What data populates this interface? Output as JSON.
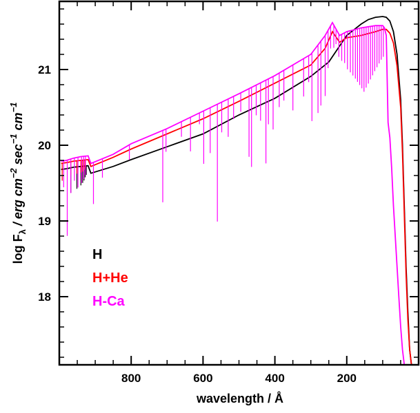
{
  "chart_data": {
    "type": "line",
    "xlabel": "wavelength / Å",
    "ylabel_parts": [
      "log F",
      "λ",
      " / erg cm",
      "−2",
      " sec",
      "−1",
      " cm",
      "−1"
    ],
    "xlim": [
      1000,
      0
    ],
    "ylim": [
      17.1,
      21.9
    ],
    "x_ticks": [
      800,
      600,
      400,
      200
    ],
    "y_ticks": [
      18,
      19,
      20,
      21
    ],
    "x_tick_labels": [
      "800",
      "600",
      "400",
      "200"
    ],
    "y_tick_labels": [
      "18",
      "19",
      "20",
      "21"
    ],
    "grid": false,
    "legend_position": "lower-left",
    "series": [
      {
        "name": "H",
        "color": "#000000",
        "x": [
          995,
          980,
          960,
          940,
          920,
          912,
          850,
          800,
          700,
          600,
          500,
          400,
          300,
          250,
          200,
          160,
          140,
          120,
          100,
          90,
          80,
          70,
          60,
          50,
          45,
          40,
          35,
          30,
          25,
          20
        ],
        "y": [
          19.68,
          19.69,
          19.71,
          19.72,
          19.73,
          19.63,
          19.72,
          19.81,
          19.98,
          20.15,
          20.4,
          20.62,
          20.91,
          21.1,
          21.45,
          21.6,
          21.66,
          21.69,
          21.7,
          21.69,
          21.64,
          21.5,
          21.2,
          20.6,
          20.0,
          19.2,
          18.4,
          17.8,
          17.3,
          17.1
        ],
        "absorption_lines": [
          {
            "x": 968,
            "depth": 0.33
          },
          {
            "x": 951,
            "depth": 0.29
          },
          {
            "x": 940,
            "depth": 0.25
          },
          {
            "x": 935,
            "depth": 0.22
          },
          {
            "x": 931,
            "depth": 0.19
          },
          {
            "x": 928,
            "depth": 0.15
          },
          {
            "x": 925,
            "depth": 0.12
          }
        ]
      },
      {
        "name": "H+He",
        "color": "#ff0000",
        "x": [
          995,
          980,
          960,
          940,
          920,
          912,
          850,
          800,
          700,
          600,
          500,
          400,
          300,
          260,
          240,
          220,
          200,
          160,
          120,
          100,
          90,
          80,
          70,
          60,
          50,
          45,
          40,
          35,
          30,
          25,
          20
        ],
        "y": [
          19.76,
          19.77,
          19.79,
          19.8,
          19.81,
          19.72,
          19.84,
          19.95,
          20.15,
          20.35,
          20.58,
          20.82,
          21.06,
          21.28,
          21.5,
          21.36,
          21.42,
          21.45,
          21.5,
          21.53,
          21.53,
          21.48,
          21.35,
          21.05,
          20.5,
          19.9,
          19.1,
          18.3,
          17.7,
          17.3,
          17.1
        ],
        "absorption_lines": [
          {
            "x": 992,
            "depth": 0.23
          },
          {
            "x": 968,
            "depth": 0.18
          },
          {
            "x": 951,
            "depth": 0.17
          },
          {
            "x": 940,
            "depth": 0.16
          },
          {
            "x": 935,
            "depth": 0.15
          },
          {
            "x": 931,
            "depth": 0.13
          },
          {
            "x": 928,
            "depth": 0.11
          }
        ]
      },
      {
        "name": "H-Ca",
        "color": "#ff00ff",
        "x": [
          995,
          980,
          960,
          940,
          920,
          912,
          850,
          800,
          700,
          600,
          500,
          400,
          300,
          260,
          240,
          220,
          200,
          160,
          120,
          100,
          95,
          90,
          85,
          80,
          75,
          70,
          65,
          60,
          55,
          50,
          45,
          40,
          35
        ],
        "y": [
          19.79,
          19.8,
          19.83,
          19.85,
          19.86,
          19.76,
          19.88,
          20.02,
          20.22,
          20.45,
          20.68,
          20.92,
          21.2,
          21.45,
          21.62,
          21.45,
          21.5,
          21.55,
          21.58,
          21.58,
          21.55,
          21.45,
          20.3,
          20.1,
          19.7,
          19.2,
          18.8,
          18.4,
          18.0,
          17.6,
          17.3,
          17.1,
          17.0
        ],
        "absorption_lines": [
          {
            "x": 988,
            "depth": 0.35
          },
          {
            "x": 978,
            "depth": 1.0
          },
          {
            "x": 968,
            "depth": 0.45
          },
          {
            "x": 958,
            "depth": 0.3
          },
          {
            "x": 948,
            "depth": 0.4
          },
          {
            "x": 938,
            "depth": 0.35
          },
          {
            "x": 932,
            "depth": 0.3
          },
          {
            "x": 927,
            "depth": 0.25
          },
          {
            "x": 905,
            "depth": 0.55
          },
          {
            "x": 880,
            "depth": 0.25
          },
          {
            "x": 805,
            "depth": 0.2
          },
          {
            "x": 712,
            "depth": 0.95
          },
          {
            "x": 703,
            "depth": 0.3
          },
          {
            "x": 660,
            "depth": 0.2
          },
          {
            "x": 635,
            "depth": 0.45
          },
          {
            "x": 610,
            "depth": 0.15
          },
          {
            "x": 598,
            "depth": 0.7
          },
          {
            "x": 580,
            "depth": 0.6
          },
          {
            "x": 560,
            "depth": 1.55
          },
          {
            "x": 548,
            "depth": 0.4
          },
          {
            "x": 530,
            "depth": 0.5
          },
          {
            "x": 515,
            "depth": 0.3
          },
          {
            "x": 495,
            "depth": 0.25
          },
          {
            "x": 472,
            "depth": 0.9
          },
          {
            "x": 465,
            "depth": 1.05
          },
          {
            "x": 452,
            "depth": 0.4
          },
          {
            "x": 440,
            "depth": 0.5
          },
          {
            "x": 425,
            "depth": 1.1
          },
          {
            "x": 418,
            "depth": 0.6
          },
          {
            "x": 405,
            "depth": 0.7
          },
          {
            "x": 388,
            "depth": 0.45
          },
          {
            "x": 375,
            "depth": 0.4
          },
          {
            "x": 350,
            "depth": 0.6
          },
          {
            "x": 320,
            "depth": 0.5
          },
          {
            "x": 306,
            "depth": 0.35
          },
          {
            "x": 297,
            "depth": 0.9
          },
          {
            "x": 280,
            "depth": 0.9
          },
          {
            "x": 272,
            "depth": 0.85
          },
          {
            "x": 260,
            "depth": 0.8
          },
          {
            "x": 252,
            "depth": 0.5
          },
          {
            "x": 245,
            "depth": 0.3
          },
          {
            "x": 236,
            "depth": 0.3
          },
          {
            "x": 230,
            "depth": 0.2
          },
          {
            "x": 222,
            "depth": 0.3
          },
          {
            "x": 214,
            "depth": 0.35
          },
          {
            "x": 206,
            "depth": 0.4
          },
          {
            "x": 198,
            "depth": 0.5
          },
          {
            "x": 190,
            "depth": 0.55
          },
          {
            "x": 183,
            "depth": 0.6
          },
          {
            "x": 176,
            "depth": 0.65
          },
          {
            "x": 170,
            "depth": 0.7
          },
          {
            "x": 164,
            "depth": 0.75
          },
          {
            "x": 158,
            "depth": 0.8
          },
          {
            "x": 152,
            "depth": 0.85
          },
          {
            "x": 146,
            "depth": 0.8
          },
          {
            "x": 140,
            "depth": 0.75
          },
          {
            "x": 134,
            "depth": 0.7
          },
          {
            "x": 128,
            "depth": 0.65
          },
          {
            "x": 122,
            "depth": 0.6
          },
          {
            "x": 116,
            "depth": 0.55
          },
          {
            "x": 110,
            "depth": 0.5
          },
          {
            "x": 104,
            "depth": 0.45
          },
          {
            "x": 98,
            "depth": 0.4
          }
        ]
      }
    ]
  }
}
